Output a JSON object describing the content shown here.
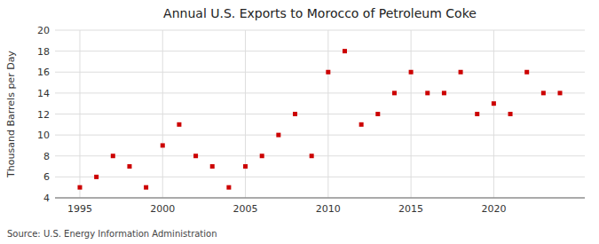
{
  "chart_data": {
    "type": "scatter",
    "title": "Annual U.S. Exports to Morocco of Petroleum Coke",
    "y_label": "Thousand Barrels per Day",
    "source": "Source: U.S. Energy Information Administration",
    "x": [
      1995,
      1996,
      1997,
      1998,
      1999,
      2000,
      2001,
      2002,
      2003,
      2004,
      2005,
      2006,
      2007,
      2008,
      2009,
      2010,
      2011,
      2012,
      2013,
      2014,
      2015,
      2016,
      2017,
      2018,
      2019,
      2020,
      2021,
      2022,
      2023,
      2024
    ],
    "values": [
      5,
      6,
      8,
      7,
      5,
      9,
      11,
      8,
      7,
      5,
      7,
      8,
      10,
      12,
      8,
      16,
      18,
      11,
      12,
      14,
      16,
      14,
      14,
      16,
      12,
      13,
      12,
      16,
      14,
      14
    ],
    "color": "#cc0000",
    "marker": "square",
    "xlim": [
      1993.5,
      2025.5
    ],
    "xticks": [
      1995,
      2000,
      2005,
      2010,
      2015,
      2020
    ],
    "ylim": [
      4,
      20
    ],
    "yticks": [
      4,
      6,
      8,
      10,
      12,
      14,
      16,
      18,
      20
    ],
    "grid": true
  }
}
